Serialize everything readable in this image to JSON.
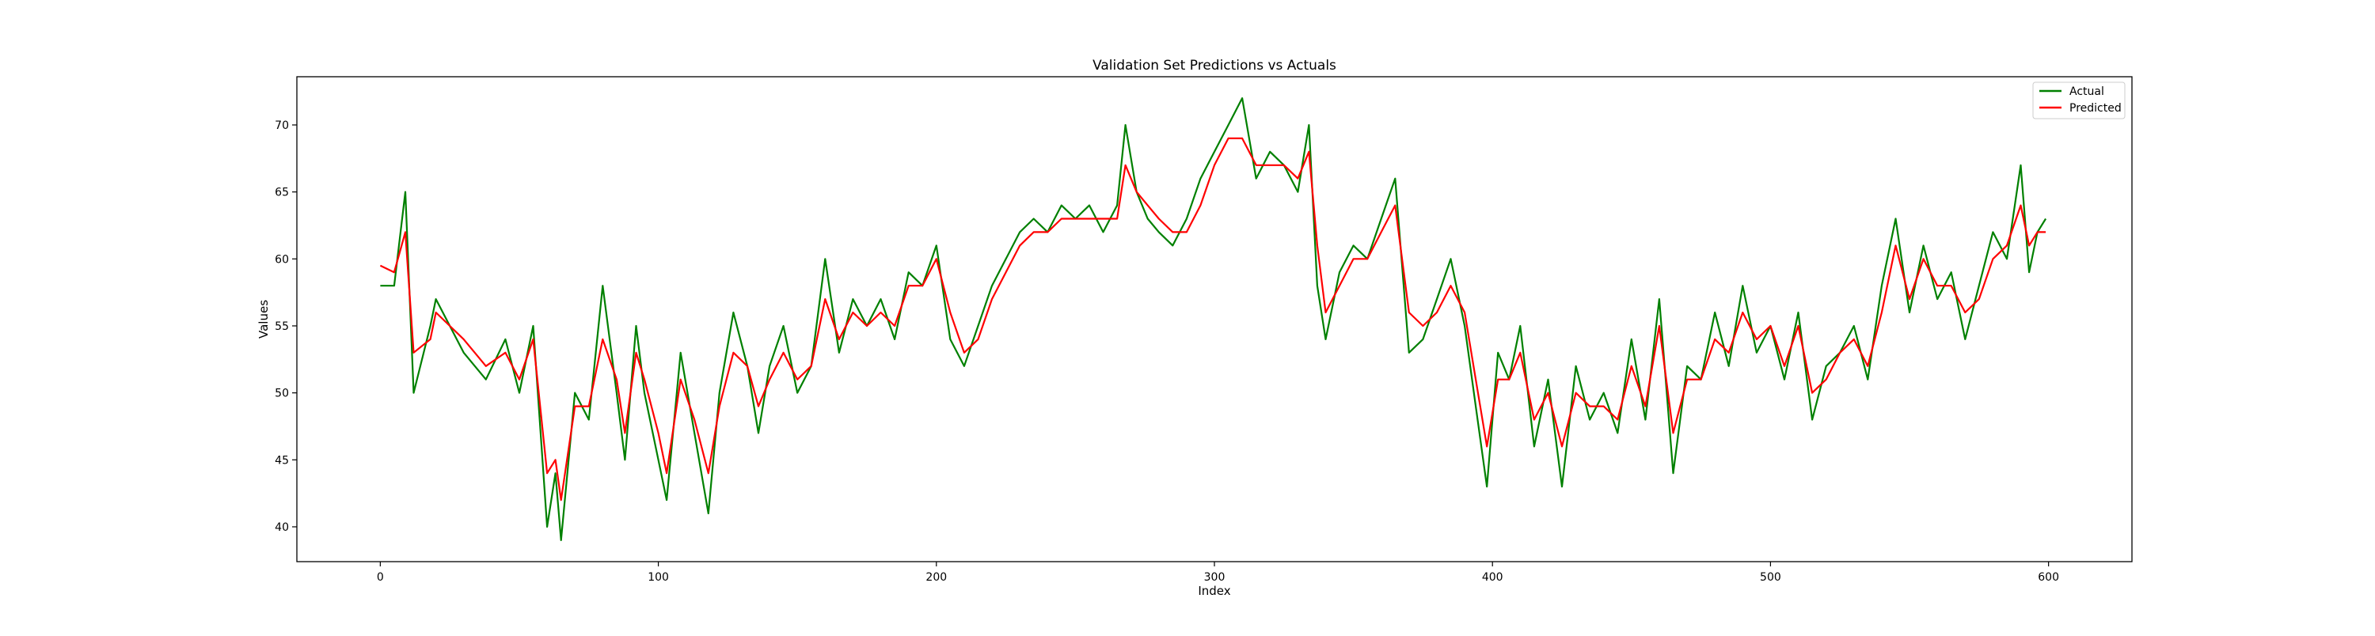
{
  "chart_data": {
    "type": "line",
    "title": "Validation Set Predictions vs Actuals",
    "xlabel": "Index",
    "ylabel": "Values",
    "xlim": [
      -30,
      630
    ],
    "ylim": [
      37.4,
      73.6
    ],
    "xticks": [
      0,
      100,
      200,
      300,
      400,
      500,
      600
    ],
    "yticks": [
      40,
      45,
      50,
      55,
      60,
      65,
      70
    ],
    "legend_position": "top-right",
    "grid": false,
    "series": [
      {
        "name": "Actual",
        "color": "#008000",
        "x": [
          0,
          5,
          9,
          12,
          18,
          20,
          25,
          30,
          38,
          45,
          50,
          55,
          60,
          63,
          65,
          70,
          75,
          80,
          85,
          88,
          92,
          95,
          100,
          103,
          108,
          113,
          118,
          122,
          127,
          132,
          136,
          140,
          145,
          150,
          155,
          160,
          165,
          170,
          175,
          180,
          185,
          190,
          195,
          200,
          205,
          210,
          215,
          220,
          225,
          230,
          235,
          240,
          245,
          250,
          255,
          260,
          265,
          268,
          272,
          276,
          280,
          285,
          290,
          295,
          300,
          305,
          310,
          315,
          320,
          325,
          330,
          334,
          337,
          340,
          345,
          350,
          355,
          360,
          365,
          370,
          375,
          380,
          385,
          390,
          394,
          398,
          402,
          406,
          410,
          415,
          420,
          425,
          430,
          435,
          440,
          445,
          450,
          455,
          460,
          465,
          470,
          475,
          480,
          485,
          490,
          495,
          500,
          505,
          510,
          515,
          520,
          525,
          530,
          535,
          540,
          545,
          550,
          555,
          560,
          565,
          570,
          575,
          580,
          585,
          590,
          593,
          596,
          599
        ],
        "values": [
          58,
          58,
          65,
          50,
          55,
          57,
          55,
          53,
          51,
          54,
          50,
          55,
          40,
          44,
          39,
          50,
          48,
          58,
          50,
          45,
          55,
          50,
          45,
          42,
          53,
          47,
          41,
          50,
          56,
          52,
          47,
          52,
          55,
          50,
          52,
          60,
          53,
          57,
          55,
          57,
          54,
          59,
          58,
          61,
          54,
          52,
          55,
          58,
          60,
          62,
          63,
          62,
          64,
          63,
          64,
          62,
          64,
          70,
          65,
          63,
          62,
          61,
          63,
          66,
          68,
          70,
          72,
          66,
          68,
          67,
          65,
          70,
          58,
          54,
          59,
          61,
          60,
          63,
          66,
          53,
          54,
          57,
          60,
          55,
          49,
          43,
          53,
          51,
          55,
          46,
          51,
          43,
          52,
          48,
          50,
          47,
          54,
          48,
          57,
          44,
          52,
          51,
          56,
          52,
          58,
          53,
          55,
          51,
          56,
          48,
          52,
          53,
          55,
          51,
          58,
          63,
          56,
          61,
          57,
          59,
          54,
          58,
          62,
          60,
          67,
          59,
          62,
          63
        ]
      },
      {
        "name": "Predicted",
        "color": "#ff0000",
        "x": [
          0,
          5,
          9,
          12,
          18,
          20,
          25,
          30,
          38,
          45,
          50,
          55,
          60,
          63,
          65,
          70,
          75,
          80,
          85,
          88,
          92,
          95,
          100,
          103,
          108,
          113,
          118,
          122,
          127,
          132,
          136,
          140,
          145,
          150,
          155,
          160,
          165,
          170,
          175,
          180,
          185,
          190,
          195,
          200,
          205,
          210,
          215,
          220,
          225,
          230,
          235,
          240,
          245,
          250,
          255,
          260,
          265,
          268,
          272,
          276,
          280,
          285,
          290,
          295,
          300,
          305,
          310,
          315,
          320,
          325,
          330,
          334,
          337,
          340,
          345,
          350,
          355,
          360,
          365,
          370,
          375,
          380,
          385,
          390,
          394,
          398,
          402,
          406,
          410,
          415,
          420,
          425,
          430,
          435,
          440,
          445,
          450,
          455,
          460,
          465,
          470,
          475,
          480,
          485,
          490,
          495,
          500,
          505,
          510,
          515,
          520,
          525,
          530,
          535,
          540,
          545,
          550,
          555,
          560,
          565,
          570,
          575,
          580,
          585,
          590,
          593,
          596,
          599
        ],
        "values": [
          59.5,
          59,
          62,
          53,
          54,
          56,
          55,
          54,
          52,
          53,
          51,
          54,
          44,
          45,
          42,
          49,
          49,
          54,
          51,
          47,
          53,
          51,
          47,
          44,
          51,
          48,
          44,
          49,
          53,
          52,
          49,
          51,
          53,
          51,
          52,
          57,
          54,
          56,
          55,
          56,
          55,
          58,
          58,
          60,
          56,
          53,
          54,
          57,
          59,
          61,
          62,
          62,
          63,
          63,
          63,
          63,
          63,
          67,
          65,
          64,
          63,
          62,
          62,
          64,
          67,
          69,
          69,
          67,
          67,
          67,
          66,
          68,
          61,
          56,
          58,
          60,
          60,
          62,
          64,
          56,
          55,
          56,
          58,
          56,
          51,
          46,
          51,
          51,
          53,
          48,
          50,
          46,
          50,
          49,
          49,
          48,
          52,
          49,
          55,
          47,
          51,
          51,
          54,
          53,
          56,
          54,
          55,
          52,
          55,
          50,
          51,
          53,
          54,
          52,
          56,
          61,
          57,
          60,
          58,
          58,
          56,
          57,
          60,
          61,
          64,
          61,
          62,
          62
        ]
      }
    ]
  }
}
